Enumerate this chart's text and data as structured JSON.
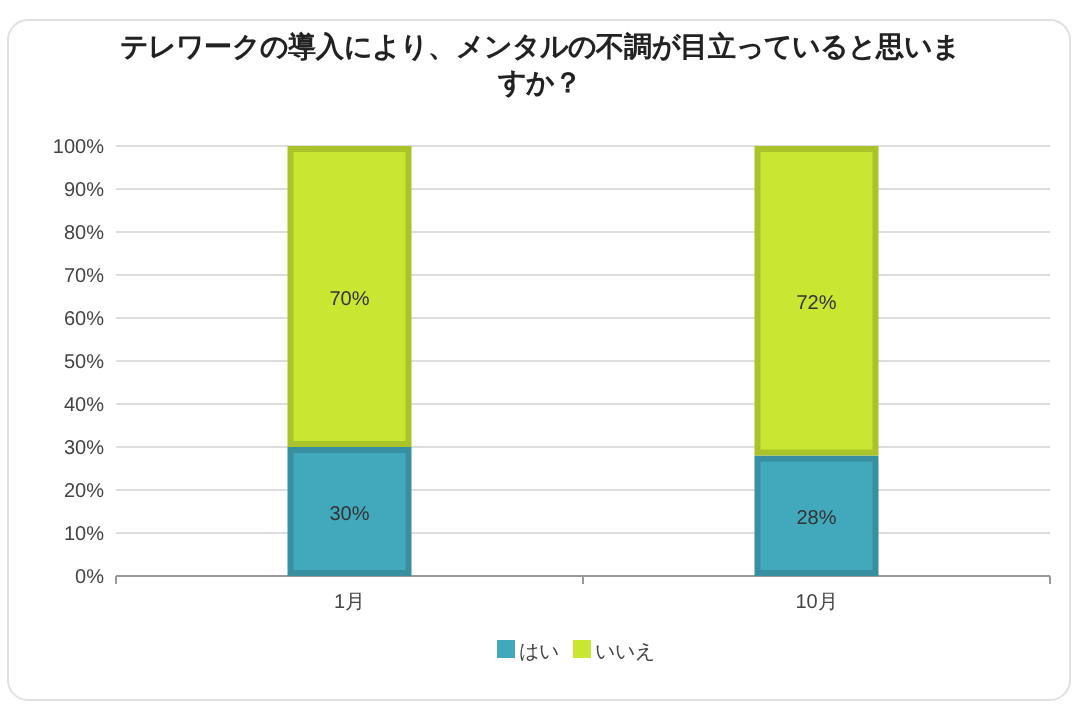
{
  "chart_data": {
    "type": "bar",
    "title": "テレワークの導入により、メンタルの不調が目立っていると思いますか？",
    "categories": [
      "1月",
      "10月"
    ],
    "stacked": true,
    "series": [
      {
        "name": "はい",
        "color": "#42a9bd",
        "values": [
          30,
          28
        ],
        "value_labels": [
          "30%",
          "28%"
        ]
      },
      {
        "name": "いいえ",
        "color": "#c9e633",
        "values": [
          70,
          72
        ],
        "value_labels": [
          "70%",
          "72%"
        ]
      }
    ],
    "ylim": [
      0,
      100
    ],
    "yticks": [
      {
        "value": 0,
        "label": "0%"
      },
      {
        "value": 10,
        "label": "10%"
      },
      {
        "value": 20,
        "label": "20%"
      },
      {
        "value": 30,
        "label": "30%"
      },
      {
        "value": 40,
        "label": "40%"
      },
      {
        "value": 50,
        "label": "50%"
      },
      {
        "value": 60,
        "label": "60%"
      },
      {
        "value": 70,
        "label": "70%"
      },
      {
        "value": 80,
        "label": "80%"
      },
      {
        "value": 90,
        "label": "90%"
      },
      {
        "value": 100,
        "label": "100%"
      }
    ],
    "grid": "y",
    "legend": "bottom"
  }
}
